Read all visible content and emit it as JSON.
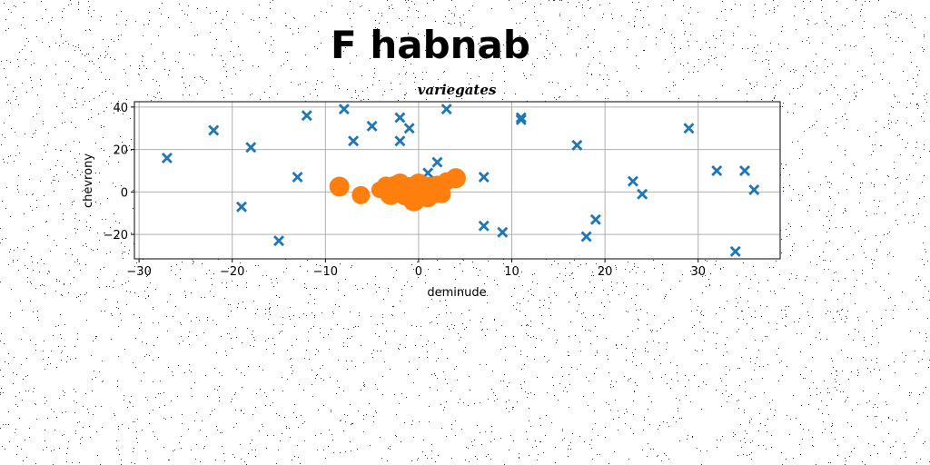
{
  "chart_data": {
    "type": "scatter",
    "suptitle": "F habnab",
    "title": "variegates",
    "xlabel": "deminude",
    "ylabel": "chevrony",
    "xlim": [
      -30.5,
      38.8
    ],
    "ylim": [
      -31.5,
      42.5
    ],
    "xticks": [
      -30,
      -20,
      -10,
      0,
      10,
      20,
      30
    ],
    "yticks": [
      -20,
      0,
      20,
      40
    ],
    "xtick_labels": [
      "−30",
      "−20",
      "−10",
      "0",
      "10",
      "20",
      "30"
    ],
    "ytick_labels": [
      "−20",
      "0",
      "20",
      "40"
    ],
    "grid": true,
    "series": [
      {
        "marker": "x-filled",
        "color": "#1f77b4",
        "points": [
          [
            -27,
            16
          ],
          [
            -22,
            29
          ],
          [
            -19,
            -7
          ],
          [
            -18,
            21
          ],
          [
            -15,
            -23
          ],
          [
            -13,
            7
          ],
          [
            -12,
            36
          ],
          [
            -8,
            39
          ],
          [
            -7,
            24
          ],
          [
            -5,
            31
          ],
          [
            -2,
            35
          ],
          [
            -2,
            24
          ],
          [
            -1,
            30
          ],
          [
            1,
            9
          ],
          [
            2,
            14
          ],
          [
            3,
            39
          ],
          [
            7,
            7
          ],
          [
            7,
            -16
          ],
          [
            9,
            -19
          ],
          [
            11,
            34
          ],
          [
            11,
            35
          ],
          [
            17,
            22
          ],
          [
            18,
            -21
          ],
          [
            19,
            -13
          ],
          [
            23,
            5
          ],
          [
            24,
            -1
          ],
          [
            29,
            30
          ],
          [
            32,
            10
          ],
          [
            34,
            -28
          ],
          [
            35,
            10
          ],
          [
            36,
            1
          ]
        ]
      },
      {
        "marker": "circle",
        "color": "#ff7f0e",
        "points": [
          [
            -8.5,
            2.5,
            11
          ],
          [
            -6.2,
            -1.5,
            10
          ],
          [
            -4.2,
            1,
            9
          ],
          [
            -3.5,
            3,
            10
          ],
          [
            -3,
            -1,
            12
          ],
          [
            -2.5,
            2,
            13
          ],
          [
            -2,
            4,
            11
          ],
          [
            -1.5,
            -2,
            10
          ],
          [
            -1,
            1,
            14
          ],
          [
            -0.5,
            -4,
            12
          ],
          [
            0,
            4,
            11
          ],
          [
            0.5,
            -2,
            10
          ],
          [
            1,
            2,
            12
          ],
          [
            1.5,
            0,
            13
          ],
          [
            2,
            3,
            11
          ],
          [
            2.5,
            -1,
            10
          ],
          [
            3,
            5,
            10
          ],
          [
            4,
            6.5,
            11
          ],
          [
            1,
            -3,
            10
          ],
          [
            -2.8,
            -0.5,
            11
          ]
        ]
      }
    ]
  }
}
